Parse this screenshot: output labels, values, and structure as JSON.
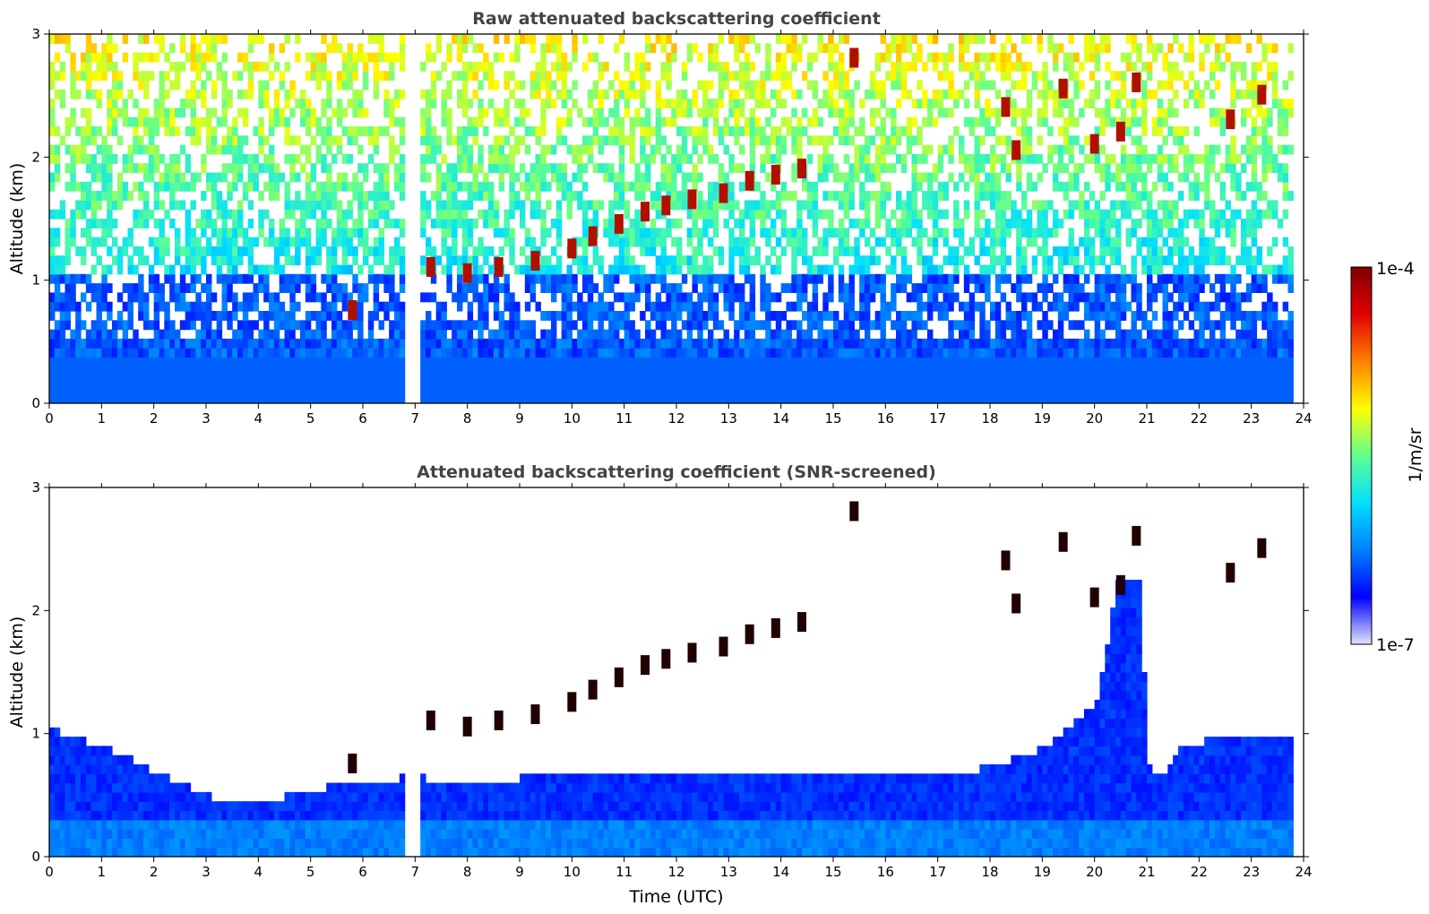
{
  "colors": {
    "jet": [
      "#e0e4f8",
      "#0000ff",
      "#0080ff",
      "#00e0ff",
      "#60ff90",
      "#ffff00",
      "#ff8000",
      "#e00000",
      "#800000"
    ],
    "background": "#ffffff",
    "axes": "#000000",
    "title": "#444444"
  },
  "chart_data": [
    {
      "type": "heatmap",
      "title": "Raw attenuated backscattering coefficient",
      "xlabel": "",
      "ylabel": "Altitude (km)",
      "xlim": [
        0,
        24
      ],
      "ylim": [
        0,
        3
      ],
      "xticks": [
        "0",
        "1",
        "2",
        "3",
        "4",
        "5",
        "6",
        "7",
        "8",
        "9",
        "10",
        "11",
        "12",
        "13",
        "14",
        "15",
        "16",
        "17",
        "18",
        "19",
        "20",
        "21",
        "22",
        "23",
        "24"
      ],
      "yticks": [
        "0",
        "1",
        "2",
        "3"
      ],
      "data_gap_hours": [
        6.75,
        7.05
      ],
      "data_end_hour": 23.8,
      "cloud_layer_points": [
        {
          "x": 5.8,
          "y": 0.75
        },
        {
          "x": 7.3,
          "y": 1.1
        },
        {
          "x": 8.0,
          "y": 1.05
        },
        {
          "x": 8.6,
          "y": 1.1
        },
        {
          "x": 9.3,
          "y": 1.15
        },
        {
          "x": 10.0,
          "y": 1.25
        },
        {
          "x": 10.4,
          "y": 1.35
        },
        {
          "x": 10.9,
          "y": 1.45
        },
        {
          "x": 11.4,
          "y": 1.55
        },
        {
          "x": 11.8,
          "y": 1.6
        },
        {
          "x": 12.3,
          "y": 1.65
        },
        {
          "x": 12.9,
          "y": 1.7
        },
        {
          "x": 13.4,
          "y": 1.8
        },
        {
          "x": 13.9,
          "y": 1.85
        },
        {
          "x": 14.4,
          "y": 1.9
        },
        {
          "x": 15.4,
          "y": 2.8
        },
        {
          "x": 18.3,
          "y": 2.4
        },
        {
          "x": 18.5,
          "y": 2.05
        },
        {
          "x": 19.4,
          "y": 2.55
        },
        {
          "x": 20.0,
          "y": 2.1
        },
        {
          "x": 20.5,
          "y": 2.2
        },
        {
          "x": 20.8,
          "y": 2.6
        },
        {
          "x": 22.6,
          "y": 2.3
        },
        {
          "x": 23.2,
          "y": 2.5
        }
      ]
    },
    {
      "type": "heatmap",
      "title": "Attenuated backscattering coefficient (SNR-screened)",
      "xlabel": "Time (UTC)",
      "ylabel": "Altitude (km)",
      "xlim": [
        0,
        24
      ],
      "ylim": [
        0,
        3
      ],
      "xticks": [
        "0",
        "1",
        "2",
        "3",
        "4",
        "5",
        "6",
        "7",
        "8",
        "9",
        "10",
        "11",
        "12",
        "13",
        "14",
        "15",
        "16",
        "17",
        "18",
        "19",
        "20",
        "21",
        "22",
        "23",
        "24"
      ],
      "yticks": [
        "0",
        "1",
        "2",
        "3"
      ],
      "boundary_layer_top": [
        {
          "x": 0.0,
          "y": 1.0
        },
        {
          "x": 1.0,
          "y": 0.85
        },
        {
          "x": 2.0,
          "y": 0.65
        },
        {
          "x": 3.0,
          "y": 0.45
        },
        {
          "x": 3.6,
          "y": 0.4
        },
        {
          "x": 4.5,
          "y": 0.45
        },
        {
          "x": 5.5,
          "y": 0.55
        },
        {
          "x": 6.7,
          "y": 0.6
        },
        {
          "x": 7.1,
          "y": 0.6
        },
        {
          "x": 8.0,
          "y": 0.55
        },
        {
          "x": 9.0,
          "y": 0.6
        },
        {
          "x": 10.0,
          "y": 0.65
        },
        {
          "x": 11.0,
          "y": 0.65
        },
        {
          "x": 12.0,
          "y": 0.65
        },
        {
          "x": 13.0,
          "y": 0.65
        },
        {
          "x": 14.0,
          "y": 0.6
        },
        {
          "x": 15.0,
          "y": 0.6
        },
        {
          "x": 16.0,
          "y": 0.6
        },
        {
          "x": 17.0,
          "y": 0.6
        },
        {
          "x": 18.0,
          "y": 0.7
        },
        {
          "x": 19.0,
          "y": 0.85
        },
        {
          "x": 20.0,
          "y": 1.2
        },
        {
          "x": 20.4,
          "y": 2.2
        },
        {
          "x": 20.8,
          "y": 2.2
        },
        {
          "x": 21.0,
          "y": 0.7
        },
        {
          "x": 21.2,
          "y": 0.6
        },
        {
          "x": 21.6,
          "y": 0.85
        },
        {
          "x": 22.5,
          "y": 0.95
        },
        {
          "x": 23.8,
          "y": 0.9
        }
      ],
      "cloud_layer_points": [
        {
          "x": 5.8,
          "y": 0.75
        },
        {
          "x": 7.3,
          "y": 1.1
        },
        {
          "x": 8.0,
          "y": 1.05
        },
        {
          "x": 8.6,
          "y": 1.1
        },
        {
          "x": 9.3,
          "y": 1.15
        },
        {
          "x": 10.0,
          "y": 1.25
        },
        {
          "x": 10.4,
          "y": 1.35
        },
        {
          "x": 10.9,
          "y": 1.45
        },
        {
          "x": 11.4,
          "y": 1.55
        },
        {
          "x": 11.8,
          "y": 1.6
        },
        {
          "x": 12.3,
          "y": 1.65
        },
        {
          "x": 12.9,
          "y": 1.7
        },
        {
          "x": 13.4,
          "y": 1.8
        },
        {
          "x": 13.9,
          "y": 1.85
        },
        {
          "x": 14.4,
          "y": 1.9
        },
        {
          "x": 15.4,
          "y": 2.8
        },
        {
          "x": 18.3,
          "y": 2.4
        },
        {
          "x": 18.5,
          "y": 2.05
        },
        {
          "x": 19.4,
          "y": 2.55
        },
        {
          "x": 20.0,
          "y": 2.1
        },
        {
          "x": 20.5,
          "y": 2.2
        },
        {
          "x": 20.8,
          "y": 2.6
        },
        {
          "x": 22.6,
          "y": 2.3
        },
        {
          "x": 23.2,
          "y": 2.5
        }
      ]
    }
  ],
  "colorbar": {
    "label": "1/m/sr",
    "max_label": "1e-4",
    "min_label": "1e-7",
    "scale": "log"
  }
}
